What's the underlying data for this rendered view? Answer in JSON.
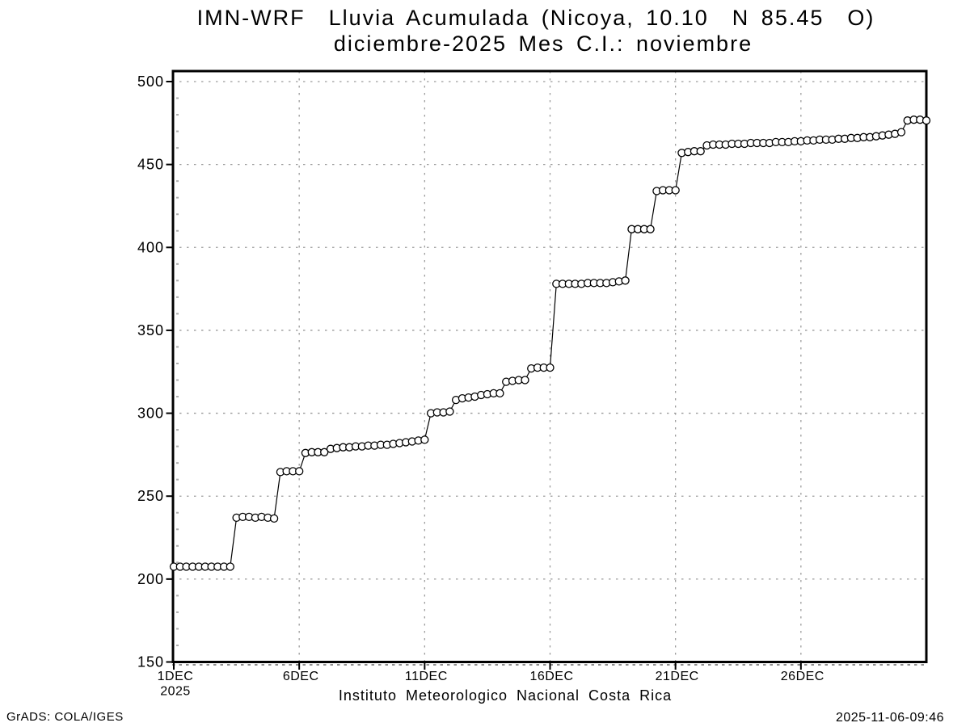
{
  "header": {
    "title_line1": "IMN-WRF  Lluvia Acumulada (Nicoya, 10.10  N 85.45  O)",
    "title_line2": "diciembre-2025 Mes C.I.: noviembre"
  },
  "footer": {
    "xlabel": "Instituto Meteorologico Nacional Costa Rica",
    "credit": "GrADS: COLA/IGES",
    "timestamp": "2025-11-06-09:46"
  },
  "chart_data": {
    "type": "line",
    "title": "IMN-WRF  Lluvia Acumulada (Nicoya, 10.10  N 85.45  O)",
    "subtitle": "diciembre-2025 Mes C.I.: noviembre",
    "xlabel": "Instituto Meteorologico Nacional Costa Rica",
    "ylabel": "",
    "ylim": [
      150,
      500
    ],
    "y_ticks": [
      150,
      200,
      250,
      300,
      350,
      400,
      450,
      500
    ],
    "y_minor_step": 10,
    "x_range_days": [
      1,
      31
    ],
    "x_ticks": [
      {
        "day": 1,
        "label": "1DEC",
        "sublabel": "2025"
      },
      {
        "day": 6,
        "label": "6DEC"
      },
      {
        "day": 11,
        "label": "11DEC"
      },
      {
        "day": 16,
        "label": "16DEC"
      },
      {
        "day": 21,
        "label": "21DEC"
      },
      {
        "day": 26,
        "label": "26DEC"
      }
    ],
    "grid": true,
    "grid_color": "#9c9c9c",
    "line_color": "#000000",
    "marker": "open-circle",
    "marker_fill": "#ffffff",
    "points_per_day": 4,
    "series": [
      {
        "name": "lluvia_acumulada_mm",
        "start": "1DEC2025-00Z",
        "interval_hours": 6,
        "values": [
          207.5,
          207.5,
          207.5,
          207.5,
          207.5,
          207.5,
          207.5,
          207.5,
          207.5,
          207.5,
          237,
          237.5,
          237.5,
          237,
          237.5,
          237,
          236.5,
          264.5,
          265,
          265,
          265,
          276,
          276.5,
          276.5,
          276.5,
          278.5,
          279,
          279.5,
          279.5,
          280,
          280,
          280.5,
          280.5,
          281,
          281,
          281.5,
          282,
          282.5,
          283,
          283.5,
          284,
          300,
          300.5,
          300.5,
          301,
          308,
          309,
          309.5,
          310,
          311,
          311.5,
          312,
          312,
          319,
          319.5,
          320,
          320,
          327,
          327.5,
          327.5,
          327.5,
          378,
          378,
          378,
          378,
          378,
          378.5,
          378.5,
          378.5,
          378.5,
          379,
          379.5,
          380,
          411,
          411,
          411,
          411,
          434,
          434.5,
          434.5,
          434.5,
          457,
          457.5,
          458,
          458,
          461.5,
          462,
          462,
          462,
          462.5,
          462.5,
          462.5,
          463,
          463,
          463,
          463,
          463.5,
          463.5,
          463.5,
          464,
          464,
          464.5,
          464.5,
          465,
          465,
          465,
          465.5,
          465.5,
          466,
          466,
          466.5,
          466.5,
          467,
          467.5,
          468,
          468.5,
          469.5,
          476.5,
          477,
          477,
          476.5
        ]
      }
    ]
  }
}
